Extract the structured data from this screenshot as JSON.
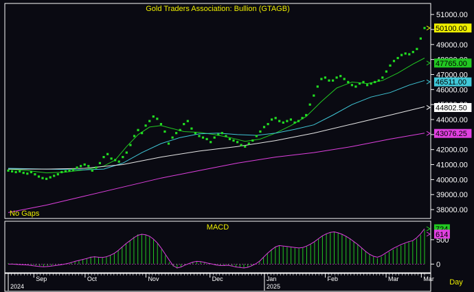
{
  "chart_data": [
    {
      "type": "line",
      "title": "Gold Traders Association: Bullion (GTAGB)",
      "note": "No Gaps",
      "ylim": [
        37500,
        51600
      ],
      "y_ticks": [
        38000,
        39000,
        40000,
        41000,
        42000,
        43000,
        44000,
        45000,
        46000,
        47000,
        48000,
        49000,
        50000,
        51000
      ],
      "y_tick_labels": [
        "38000.00",
        "39000.00",
        "40000.00",
        "41000.00",
        "42000.00",
        "43000.00",
        "44000.00",
        "45000.00",
        "46000.00",
        "47000.00",
        "48000.00",
        "49000.00",
        "50000.00",
        "51000.00"
      ],
      "price_points": [
        [
          0,
          40600
        ],
        [
          1,
          40550
        ],
        [
          2,
          40500
        ],
        [
          3,
          40550
        ],
        [
          4,
          40450
        ],
        [
          5,
          40400
        ],
        [
          6,
          40500
        ],
        [
          7,
          40350
        ],
        [
          8,
          40200
        ],
        [
          9,
          40100
        ],
        [
          10,
          40050
        ],
        [
          11,
          40150
        ],
        [
          12,
          40250
        ],
        [
          13,
          40350
        ],
        [
          14,
          40500
        ],
        [
          15,
          40550
        ],
        [
          16,
          40600
        ],
        [
          17,
          40650
        ],
        [
          18,
          40800
        ],
        [
          19,
          40900
        ],
        [
          20,
          41000
        ],
        [
          21,
          40900
        ],
        [
          22,
          40600
        ],
        [
          23,
          40800
        ],
        [
          24,
          41100
        ],
        [
          25,
          41500
        ],
        [
          26,
          41700
        ],
        [
          27,
          41400
        ],
        [
          28,
          41300
        ],
        [
          29,
          41200
        ],
        [
          30,
          41500
        ],
        [
          31,
          41800
        ],
        [
          32,
          42300
        ],
        [
          33,
          42900
        ],
        [
          34,
          43300
        ],
        [
          35,
          43100
        ],
        [
          36,
          43600
        ],
        [
          37,
          43900
        ],
        [
          38,
          44200
        ],
        [
          39,
          44050
        ],
        [
          40,
          43700
        ],
        [
          41,
          43200
        ],
        [
          42,
          42400
        ],
        [
          43,
          42800
        ],
        [
          44,
          43100
        ],
        [
          45,
          43300
        ],
        [
          46,
          43700
        ],
        [
          47,
          43900
        ],
        [
          48,
          43400
        ],
        [
          49,
          43100
        ],
        [
          50,
          42900
        ],
        [
          51,
          42800
        ],
        [
          52,
          42700
        ],
        [
          53,
          42500
        ],
        [
          54,
          42800
        ],
        [
          55,
          43000
        ],
        [
          56,
          43100
        ],
        [
          57,
          42900
        ],
        [
          58,
          42700
        ],
        [
          59,
          42600
        ],
        [
          60,
          42500
        ],
        [
          61,
          42300
        ],
        [
          62,
          42200
        ],
        [
          63,
          42400
        ],
        [
          64,
          42600
        ],
        [
          65,
          42900
        ],
        [
          66,
          43200
        ],
        [
          67,
          43500
        ],
        [
          68,
          43700
        ],
        [
          69,
          44000
        ],
        [
          70,
          44100
        ],
        [
          71,
          43900
        ],
        [
          72,
          43800
        ],
        [
          73,
          43900
        ],
        [
          74,
          44000
        ],
        [
          75,
          43800
        ],
        [
          76,
          43900
        ],
        [
          77,
          44100
        ],
        [
          78,
          44300
        ],
        [
          79,
          45000
        ],
        [
          80,
          45600
        ],
        [
          81,
          46200
        ],
        [
          82,
          46700
        ],
        [
          83,
          46800
        ],
        [
          84,
          46600
        ],
        [
          85,
          46600
        ],
        [
          86,
          46800
        ],
        [
          87,
          46900
        ],
        [
          88,
          46700
        ],
        [
          89,
          46500
        ],
        [
          90,
          46300
        ],
        [
          91,
          46200
        ],
        [
          92,
          46400
        ],
        [
          93,
          46500
        ],
        [
          94,
          46300
        ],
        [
          95,
          46400
        ],
        [
          96,
          46500
        ],
        [
          97,
          46600
        ],
        [
          98,
          46800
        ],
        [
          99,
          47200
        ],
        [
          100,
          47600
        ],
        [
          101,
          47900
        ],
        [
          102,
          48100
        ],
        [
          103,
          48300
        ],
        [
          104,
          48400
        ],
        [
          105,
          48350
        ],
        [
          106,
          48500
        ],
        [
          107,
          48700
        ],
        [
          108,
          49400
        ],
        [
          109,
          50100
        ]
      ],
      "series": [
        {
          "name": "MA short",
          "color": "#22c822",
          "points": [
            [
              0,
              40700
            ],
            [
              5,
              40600
            ],
            [
              10,
              40450
            ],
            [
              15,
              40500
            ],
            [
              20,
              40650
            ],
            [
              25,
              40900
            ],
            [
              28,
              41300
            ],
            [
              31,
              42200
            ],
            [
              34,
              43000
            ],
            [
              37,
              43500
            ],
            [
              40,
              43600
            ],
            [
              43,
              43400
            ],
            [
              46,
              43200
            ],
            [
              50,
              43150
            ],
            [
              54,
              43000
            ],
            [
              58,
              42800
            ],
            [
              62,
              42550
            ],
            [
              66,
              42700
            ],
            [
              70,
              43100
            ],
            [
              74,
              43600
            ],
            [
              78,
              44200
            ],
            [
              82,
              45200
            ],
            [
              86,
              46100
            ],
            [
              90,
              46500
            ],
            [
              94,
              46400
            ],
            [
              98,
              46600
            ],
            [
              102,
              47100
            ],
            [
              106,
              47700
            ],
            [
              109,
              48100
            ]
          ]
        },
        {
          "name": "MA medium",
          "color": "#40c8d8",
          "points": [
            [
              0,
              40750
            ],
            [
              10,
              40700
            ],
            [
              20,
              40650
            ],
            [
              25,
              40700
            ],
            [
              30,
              41100
            ],
            [
              35,
              41800
            ],
            [
              40,
              42400
            ],
            [
              45,
              42800
            ],
            [
              50,
              43050
            ],
            [
              55,
              43100
            ],
            [
              60,
              43000
            ],
            [
              65,
              42950
            ],
            [
              70,
              43100
            ],
            [
              75,
              43350
            ],
            [
              80,
              43650
            ],
            [
              85,
              44300
            ],
            [
              90,
              45000
            ],
            [
              95,
              45500
            ],
            [
              100,
              45800
            ],
            [
              105,
              46300
            ],
            [
              109,
              46600
            ]
          ]
        },
        {
          "name": "MA long",
          "color": "#e8e8e8",
          "points": [
            [
              0,
              40700
            ],
            [
              10,
              40700
            ],
            [
              20,
              40750
            ],
            [
              30,
              41000
            ],
            [
              40,
              41500
            ],
            [
              50,
              41900
            ],
            [
              60,
              42200
            ],
            [
              70,
              42600
            ],
            [
              80,
              43100
            ],
            [
              90,
              43700
            ],
            [
              100,
              44300
            ],
            [
              109,
              44850
            ]
          ]
        },
        {
          "name": "MA longest",
          "color": "#e040e0",
          "points": [
            [
              0,
              37800
            ],
            [
              10,
              38300
            ],
            [
              20,
              38900
            ],
            [
              30,
              39500
            ],
            [
              40,
              40100
            ],
            [
              50,
              40600
            ],
            [
              60,
              41100
            ],
            [
              70,
              41500
            ],
            [
              80,
              41800
            ],
            [
              90,
              42200
            ],
            [
              100,
              42700
            ],
            [
              109,
              43100
            ]
          ]
        }
      ],
      "value_tags": [
        {
          "value": 50100,
          "label": "50100.00",
          "bg": "#f0f000",
          "fg": "#000000"
        },
        {
          "value": 47765,
          "label": "47765.00",
          "bg": "#22c822",
          "fg": "#000000"
        },
        {
          "value": 46511,
          "label": "46511.00",
          "bg": "#40c8d8",
          "fg": "#000000"
        },
        {
          "value": 44802.5,
          "label": "44802.50",
          "bg": "#ffffff",
          "fg": "#000000"
        },
        {
          "value": 43076.25,
          "label": "43076.25",
          "bg": "#e040e0",
          "fg": "#000000"
        }
      ]
    },
    {
      "type": "bar",
      "title": "MACD",
      "ylim": [
        -150,
        850
      ],
      "y_ticks": [
        0,
        500
      ],
      "y_tick_labels": [
        "0",
        "500"
      ],
      "histogram": [
        20,
        15,
        10,
        5,
        0,
        -10,
        -20,
        -30,
        -40,
        -45,
        -40,
        -30,
        -20,
        -10,
        0,
        20,
        40,
        60,
        80,
        100,
        120,
        150,
        160,
        140,
        130,
        150,
        180,
        220,
        280,
        350,
        420,
        480,
        560,
        610,
        620,
        600,
        560,
        500,
        420,
        300,
        180,
        40,
        -50,
        -90,
        -60,
        -20,
        10,
        40,
        60,
        50,
        40,
        20,
        0,
        -20,
        -30,
        -30,
        -20,
        -40,
        -60,
        -70,
        -80,
        -60,
        -30,
        0,
        60,
        140,
        220,
        300,
        360,
        380,
        360,
        350,
        340,
        330,
        320,
        330,
        360,
        400,
        450,
        520,
        580,
        620,
        650,
        660,
        640,
        610,
        570,
        520,
        460,
        400,
        330,
        260,
        200,
        150,
        120,
        150,
        200,
        250,
        300,
        340,
        380,
        420,
        450,
        470,
        520,
        600,
        700
      ],
      "macd_line": [
        0,
        0,
        -5,
        -10,
        -15,
        -20,
        -30,
        -40,
        -50,
        -55,
        -50,
        -40,
        -30,
        -20,
        -5,
        10,
        30,
        55,
        75,
        95,
        115,
        140,
        150,
        140,
        135,
        150,
        180,
        220,
        280,
        350,
        420,
        480,
        540,
        590,
        610,
        600,
        570,
        510,
        430,
        320,
        200,
        80,
        -30,
        -80,
        -60,
        -20,
        10,
        40,
        55,
        50,
        35,
        15,
        0,
        -20,
        -30,
        -30,
        -25,
        -40,
        -60,
        -70,
        -80,
        -65,
        -35,
        5,
        60,
        140,
        220,
        290,
        350,
        380,
        370,
        360,
        350,
        340,
        330,
        340,
        370,
        410,
        460,
        520,
        580,
        620,
        650,
        660,
        640,
        610,
        570,
        520,
        460,
        400,
        330,
        260,
        200,
        160,
        140,
        170,
        220,
        270,
        320,
        360,
        400,
        430,
        460,
        480,
        540,
        620,
        724
      ],
      "value_tags": [
        {
          "value": 724,
          "label": "724",
          "bg": "#22c822",
          "fg": "#000000"
        },
        {
          "value": 614,
          "label": "614",
          "bg": "#e040e0",
          "fg": "#000000"
        }
      ]
    }
  ],
  "x_axis": {
    "months": [
      {
        "index": 8,
        "label": "Sep"
      },
      {
        "index": 24,
        "label": "Oct"
      },
      {
        "index": 43,
        "label": "Nov"
      },
      {
        "index": 63,
        "label": "Dec"
      },
      {
        "index": 80,
        "label": "Jan"
      },
      {
        "index": 99,
        "label": "Feb"
      },
      {
        "index": 118,
        "label": "Mar"
      },
      {
        "index": 129,
        "label": "Mar"
      }
    ],
    "years": [
      {
        "index": 0,
        "label": "2024"
      },
      {
        "index": 80,
        "label": "2025"
      }
    ],
    "period_label": "Day"
  },
  "colors": {
    "background": "#0a0a12",
    "title": "#f0f000",
    "price_dot": "#22dd22",
    "frame": "#ffffff",
    "axis_text": "#ffffff"
  }
}
